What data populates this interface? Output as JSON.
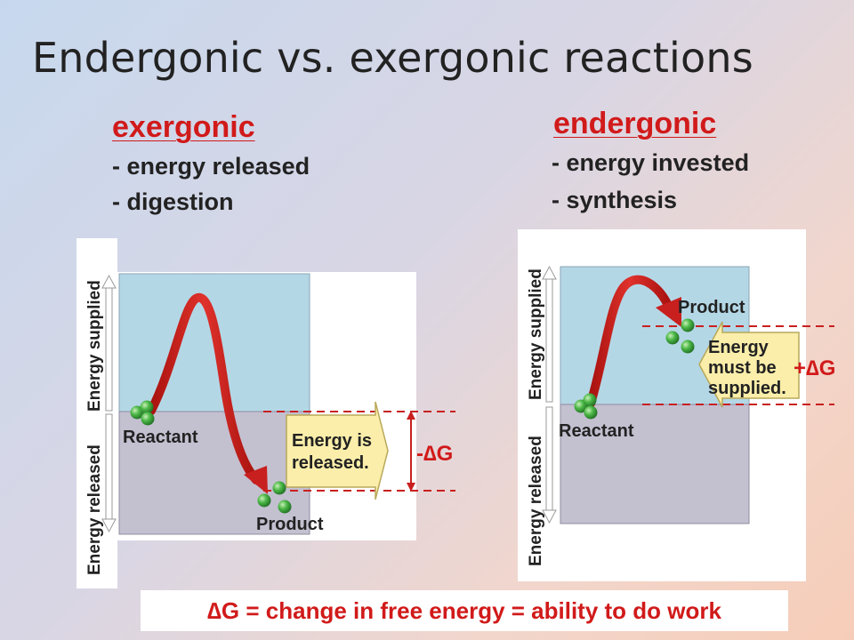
{
  "title": "Endergonic vs. exergonic reactions",
  "exergonic": {
    "heading": "exergonic",
    "bullets": [
      "- energy released",
      "- digestion"
    ],
    "axis_supplied": "Energy supplied",
    "axis_released": "Energy released",
    "reactant_label": "Reactant",
    "product_label": "Product",
    "box_line1": "Energy is",
    "box_line2": "released.",
    "delta_label": "-∆G"
  },
  "endergonic": {
    "heading": "endergonic",
    "bullets": [
      "- energy invested",
      "- synthesis"
    ],
    "axis_supplied": "Energy supplied",
    "axis_released": "Energy released",
    "reactant_label": "Reactant",
    "product_label": "Product",
    "box_line1": "Energy",
    "box_line2": "must be",
    "box_line3": "supplied.",
    "delta_label": "+∆G"
  },
  "footer": "∆G = change in free energy = ability to do work",
  "colors": {
    "heading_red": "#d11a1a",
    "upper_region": "#b4d7e6",
    "lower_region": "#c3c0d0",
    "arrow": "#c8201f",
    "box_fill": "#fbeeaa",
    "molecule": "#4db848"
  }
}
